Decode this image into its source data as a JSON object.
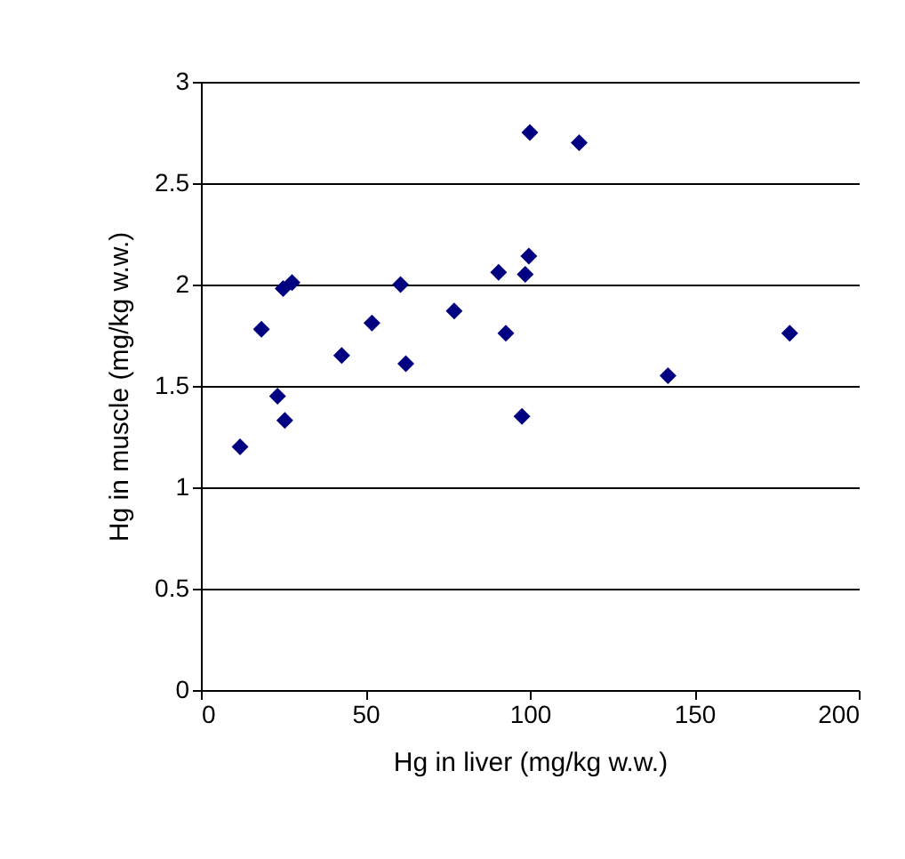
{
  "chart_data": {
    "type": "scatter",
    "xlabel": "Hg in liver (mg/kg w.w.)",
    "ylabel": "Hg in muscle (mg/kg w.w.)",
    "x": [
      11.9,
      18.4,
      23.3,
      25.5,
      25,
      27.7,
      42.8,
      52,
      60.7,
      62.3,
      77,
      90.5,
      92.7,
      97.6,
      98.6,
      99.7,
      100,
      115,
      142,
      179
    ],
    "series": [
      {
        "color": "#000080",
        "values": [
          1.2,
          1.78,
          1.45,
          1.33,
          1.98,
          2.01,
          1.65,
          1.81,
          2.0,
          1.61,
          1.87,
          2.06,
          1.76,
          1.35,
          2.05,
          2.14,
          2.75,
          2.7,
          1.55,
          1.76
        ]
      }
    ],
    "xlim": [
      0,
      200
    ],
    "xticks": [
      0,
      50,
      100,
      150,
      200
    ],
    "ylim": [
      0,
      3
    ],
    "yticks": [
      0,
      0.5,
      1,
      1.5,
      2,
      2.5,
      3
    ],
    "grid": "y",
    "marker": "diamond",
    "legend": false
  }
}
